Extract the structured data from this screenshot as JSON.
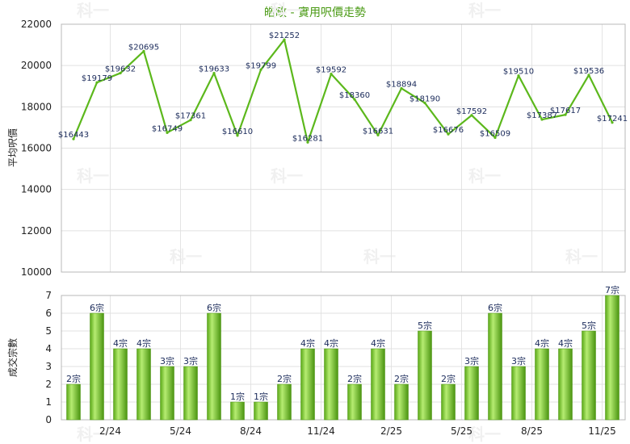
{
  "chart_data": [
    {
      "type": "line",
      "title": "皓畋 - 實用呎價走勢",
      "ylabel": "平均呎價",
      "ylim": [
        10000,
        22000
      ],
      "yticks": [
        10000,
        12000,
        14000,
        16000,
        18000,
        20000,
        22000
      ],
      "grid": true,
      "series": [
        {
          "values": [
            16443,
            19179,
            19632,
            20695,
            16749,
            17361,
            19633,
            16610,
            19799,
            21252,
            16281,
            19592,
            18360,
            16631,
            18894,
            18190,
            16676,
            17592,
            16509,
            19510,
            17387,
            17617,
            19536,
            17241
          ],
          "labels": [
            "$16443",
            "$19179",
            "$19632",
            "$20695",
            "$16749",
            "$17361",
            "$19633",
            "$16610",
            "$19799",
            "$21252",
            "$16281",
            "$19592",
            "$18360",
            "$16631",
            "$18894",
            "$18190",
            "$16676",
            "$17592",
            "$16509",
            "$19510",
            "$17387",
            "$17617",
            "$19536",
            "$17241"
          ],
          "color": "#5cb81c"
        }
      ]
    },
    {
      "type": "bar",
      "ylabel": "成交宗數",
      "ylim": [
        0,
        7
      ],
      "yticks": [
        0,
        1,
        2,
        3,
        4,
        5,
        6,
        7
      ],
      "grid": true,
      "x_tick_labels": [
        "2/24",
        "5/24",
        "8/24",
        "11/24",
        "2/25",
        "5/25",
        "8/25",
        "11/25"
      ],
      "series": [
        {
          "values": [
            2,
            6,
            4,
            4,
            3,
            3,
            6,
            1,
            1,
            2,
            4,
            4,
            2,
            4,
            2,
            5,
            2,
            3,
            6,
            3,
            4,
            4,
            5,
            7
          ],
          "labels": [
            "2宗",
            "6宗",
            "4宗",
            "4宗",
            "3宗",
            "3宗",
            "6宗",
            "1宗",
            "1宗",
            "2宗",
            "4宗",
            "4宗",
            "2宗",
            "4宗",
            "2宗",
            "5宗",
            "2宗",
            "3宗",
            "6宗",
            "3宗",
            "4宗",
            "4宗",
            "5宗",
            "7宗"
          ],
          "color": "#6cbf24"
        }
      ]
    }
  ],
  "watermark_text": "科一",
  "colors": {
    "line": "#5cb81c",
    "bar_light": "#a8e060",
    "bar_dark": "#4d9a12",
    "title": "#4a9a14"
  }
}
